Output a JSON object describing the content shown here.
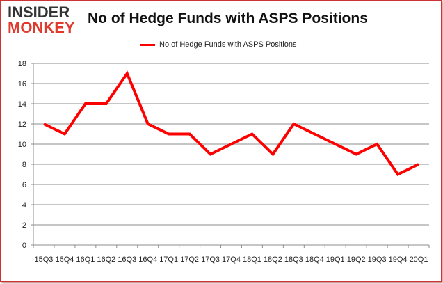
{
  "logo": {
    "line1": "INSIDER",
    "line2": "MONKEY"
  },
  "chart_data": {
    "type": "line",
    "title": "No of Hedge Funds with ASPS Positions",
    "xlabel": "",
    "ylabel": "",
    "categories": [
      "15Q3",
      "15Q4",
      "16Q1",
      "16Q2",
      "16Q3",
      "16Q4",
      "17Q1",
      "17Q2",
      "17Q3",
      "17Q4",
      "18Q1",
      "18Q2",
      "18Q3",
      "18Q4",
      "19Q1",
      "19Q2",
      "19Q3",
      "19Q4",
      "20Q1"
    ],
    "series": [
      {
        "name": "No of Hedge Funds with ASPS Positions",
        "color": "#ff0000",
        "values": [
          12,
          11,
          14,
          14,
          17,
          12,
          11,
          11,
          9,
          10,
          11,
          9,
          12,
          11,
          10,
          9,
          10,
          7,
          8
        ]
      }
    ],
    "ylim": [
      0,
      18
    ],
    "yticks": [
      0,
      2,
      4,
      6,
      8,
      10,
      12,
      14,
      16,
      18
    ],
    "grid": true,
    "legend": "top-center"
  }
}
